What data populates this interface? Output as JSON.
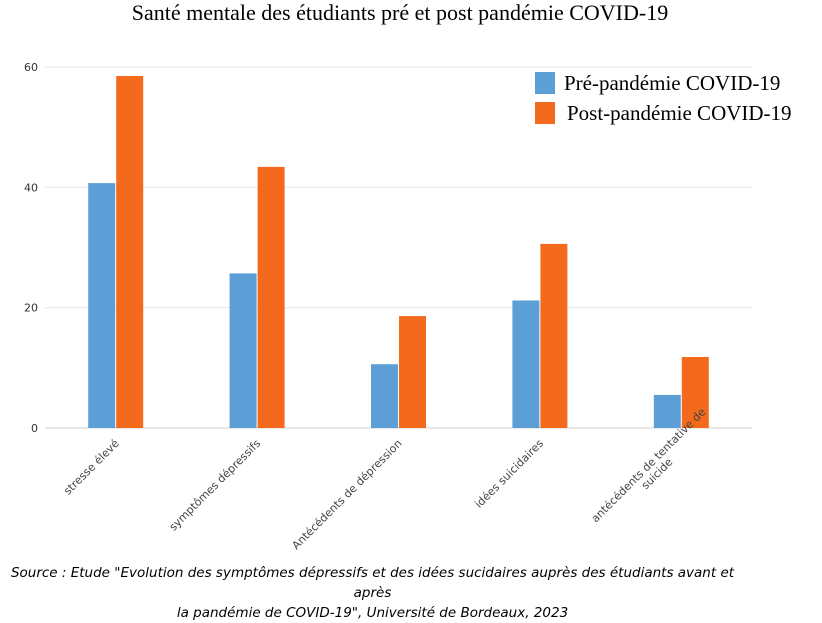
{
  "chart_data": {
    "type": "bar",
    "title": "Santé mentale des étudiants pré et post pandémie COVID-19",
    "categories": [
      [
        "stresse élevé"
      ],
      [
        "symptômes dépressifs"
      ],
      [
        "Antécédents de dépression"
      ],
      [
        "idées suicidaires"
      ],
      [
        "antécédents de tentative de",
        "suicide"
      ]
    ],
    "series": [
      {
        "name": "Pré-pandémie COVID-19",
        "color": "#5b9fd6",
        "values": [
          40.7,
          25.7,
          10.6,
          21.2,
          5.5
        ]
      },
      {
        "name": "Post-pandémie COVID-19",
        "color": "#f36a1d",
        "values": [
          58.5,
          43.4,
          18.6,
          30.6,
          11.8
        ]
      }
    ],
    "ylim": [
      0,
      60
    ],
    "yticks": [
      0,
      20,
      40,
      60
    ],
    "grid": true,
    "legend": "top-right",
    "xlabel": "",
    "ylabel": ""
  },
  "source": {
    "line1": "Source : Etude \"Evolution des symptômes dépressifs et des idées sucidaires auprès des étudiants avant et après",
    "line2": "la pandémie de COVID-19\", Université de Bordeaux, 2023"
  }
}
